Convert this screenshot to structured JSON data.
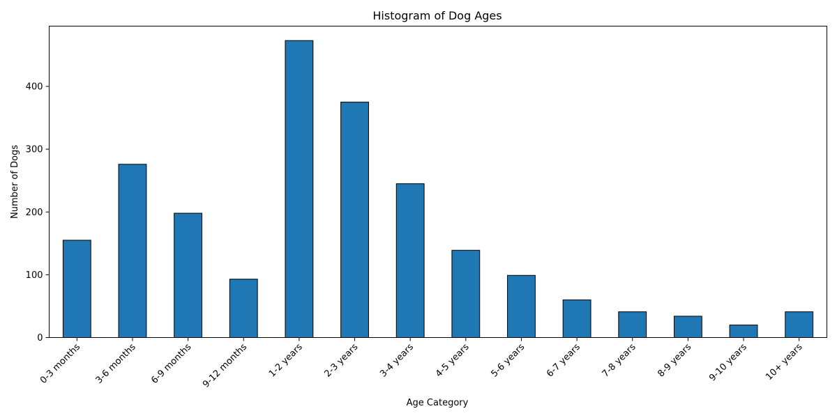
{
  "chart_data": {
    "type": "bar",
    "title": "Histogram of Dog Ages",
    "xlabel": "Age Category",
    "ylabel": "Number of Dogs",
    "categories": [
      "0-3 months",
      "3-6 months",
      "6-9 months",
      "9-12 months",
      "1-2 years",
      "2-3 years",
      "3-4 years",
      "4-5 years",
      "5-6 years",
      "6-7 years",
      "7-8 years",
      "8-9 years",
      "9-10 years",
      "10+ years"
    ],
    "values": [
      155,
      276,
      198,
      93,
      473,
      375,
      245,
      139,
      99,
      60,
      41,
      34,
      20,
      41
    ],
    "ylim": [
      0,
      496
    ],
    "yticks": [
      0,
      100,
      200,
      300,
      400
    ],
    "bar_color": "#1f77b4",
    "edge_color": "#000000",
    "grid": false,
    "legend": "none"
  }
}
